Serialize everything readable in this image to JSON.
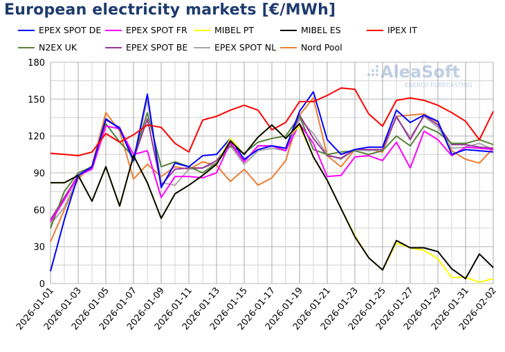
{
  "chart_data": {
    "type": "line",
    "title": "European electricity markets [€/MWh]",
    "xlabel": "",
    "ylabel": "",
    "ylim": [
      0,
      180
    ],
    "yticks": [
      0,
      30,
      60,
      90,
      120,
      150,
      180
    ],
    "grid": true,
    "legend_position": "top",
    "x": [
      "2026-01-01",
      "2026-01-02",
      "2026-01-03",
      "2026-01-04",
      "2026-01-05",
      "2026-01-06",
      "2026-01-07",
      "2026-01-08",
      "2026-01-09",
      "2026-01-10",
      "2026-01-11",
      "2026-01-12",
      "2026-01-13",
      "2026-01-14",
      "2026-01-15",
      "2026-01-16",
      "2026-01-17",
      "2026-01-18",
      "2026-01-19",
      "2026-01-20",
      "2026-01-21",
      "2026-01-22",
      "2026-01-23",
      "2026-01-24",
      "2026-01-25",
      "2026-01-26",
      "2026-01-27",
      "2026-01-28",
      "2026-01-29",
      "2026-01-30",
      "2026-01-31",
      "2026-02-01",
      "2026-02-02"
    ],
    "xtick_labels": [
      "2026-01-01",
      "2026-01-03",
      "2026-01-05",
      "2026-01-07",
      "2026-01-09",
      "2026-01-11",
      "2026-01-13",
      "2026-01-15",
      "2026-01-17",
      "2026-01-19",
      "2026-01-21",
      "2026-01-23",
      "2026-01-25",
      "2026-01-27",
      "2026-01-29",
      "2026-01-31",
      "2026-02-02"
    ],
    "series": [
      {
        "name": "EPEX SPOT DE",
        "color": "#0000ff",
        "values": [
          10,
          52,
          88,
          95,
          134,
          126,
          100,
          154,
          78,
          98,
          95,
          104,
          105,
          118,
          101,
          109,
          112,
          110,
          140,
          156,
          117,
          105,
          109,
          111,
          111,
          141,
          131,
          137,
          132,
          105,
          109,
          108,
          107
        ]
      },
      {
        "name": "EPEX SPOT FR",
        "color": "#ff00ff",
        "values": [
          50,
          68,
          88,
          93,
          128,
          126,
          105,
          108,
          70,
          87,
          87,
          86,
          90,
          115,
          99,
          112,
          112,
          108,
          130,
          114,
          87,
          88,
          103,
          104,
          100,
          115,
          94,
          124,
          117,
          104,
          111,
          110,
          109
        ]
      },
      {
        "name": "MIBEL PT",
        "color": "#ffff00",
        "values": [
          82,
          82,
          88,
          67,
          95,
          63,
          104,
          82,
          53,
          73,
          80,
          88,
          97,
          118,
          105,
          119,
          129,
          118,
          128,
          103,
          84,
          61,
          39,
          21,
          11,
          33,
          29,
          27,
          20,
          5,
          5,
          1,
          4
        ]
      },
      {
        "name": "MIBEL ES",
        "color": "#000000",
        "values": [
          82,
          82,
          88,
          67,
          95,
          63,
          104,
          82,
          53,
          73,
          80,
          88,
          97,
          116,
          105,
          119,
          129,
          118,
          130,
          103,
          84,
          61,
          38,
          21,
          11,
          35,
          29,
          29,
          26,
          12,
          4,
          24,
          13
        ]
      },
      {
        "name": "IPEX IT",
        "color": "#ff0000",
        "values": [
          106,
          105,
          104,
          107,
          122,
          115,
          121,
          129,
          127,
          114,
          107,
          133,
          136,
          141,
          145,
          141,
          125,
          131,
          148,
          148,
          153,
          159,
          158,
          138,
          128,
          149,
          151,
          149,
          145,
          139,
          132,
          117,
          140
        ]
      },
      {
        "name": "N2EX UK",
        "color": "#548235",
        "values": [
          45,
          75,
          90,
          95,
          130,
          115,
          103,
          139,
          95,
          99,
          95,
          90,
          98,
          112,
          106,
          115,
          118,
          120,
          136,
          109,
          105,
          107,
          108,
          105,
          108,
          120,
          112,
          128,
          123,
          114,
          114,
          117,
          113
        ]
      },
      {
        "name": "EPEX SPOT BE",
        "color": "#993399",
        "values": [
          52,
          70,
          88,
          94,
          133,
          127,
          101,
          134,
          80,
          93,
          94,
          94,
          100,
          114,
          99,
          112,
          112,
          110,
          137,
          118,
          104,
          102,
          109,
          109,
          109,
          136,
          117,
          137,
          129,
          113,
          113,
          111,
          110
        ]
      },
      {
        "name": "EPEX SPOT NL",
        "color": "#a6a6a6",
        "values": [
          48,
          62,
          87,
          94,
          133,
          127,
          98,
          150,
          82,
          80,
          93,
          94,
          98,
          112,
          97,
          108,
          110,
          108,
          134,
          122,
          105,
          101,
          109,
          108,
          109,
          135,
          119,
          136,
          127,
          110,
          111,
          114,
          109
        ]
      },
      {
        "name": "Nord Pool",
        "color": "#ed7d31",
        "values": [
          34,
          60,
          85,
          96,
          139,
          124,
          85,
          97,
          87,
          95,
          93,
          99,
          96,
          83,
          93,
          80,
          86,
          100,
          137,
          151,
          104,
          95,
          109,
          109,
          107,
          136,
          137,
          138,
          131,
          108,
          101,
          98,
          110
        ]
      }
    ]
  },
  "watermark": {
    "brand": "AleaSoft",
    "tagline": "ENERGY FORECASTING"
  }
}
